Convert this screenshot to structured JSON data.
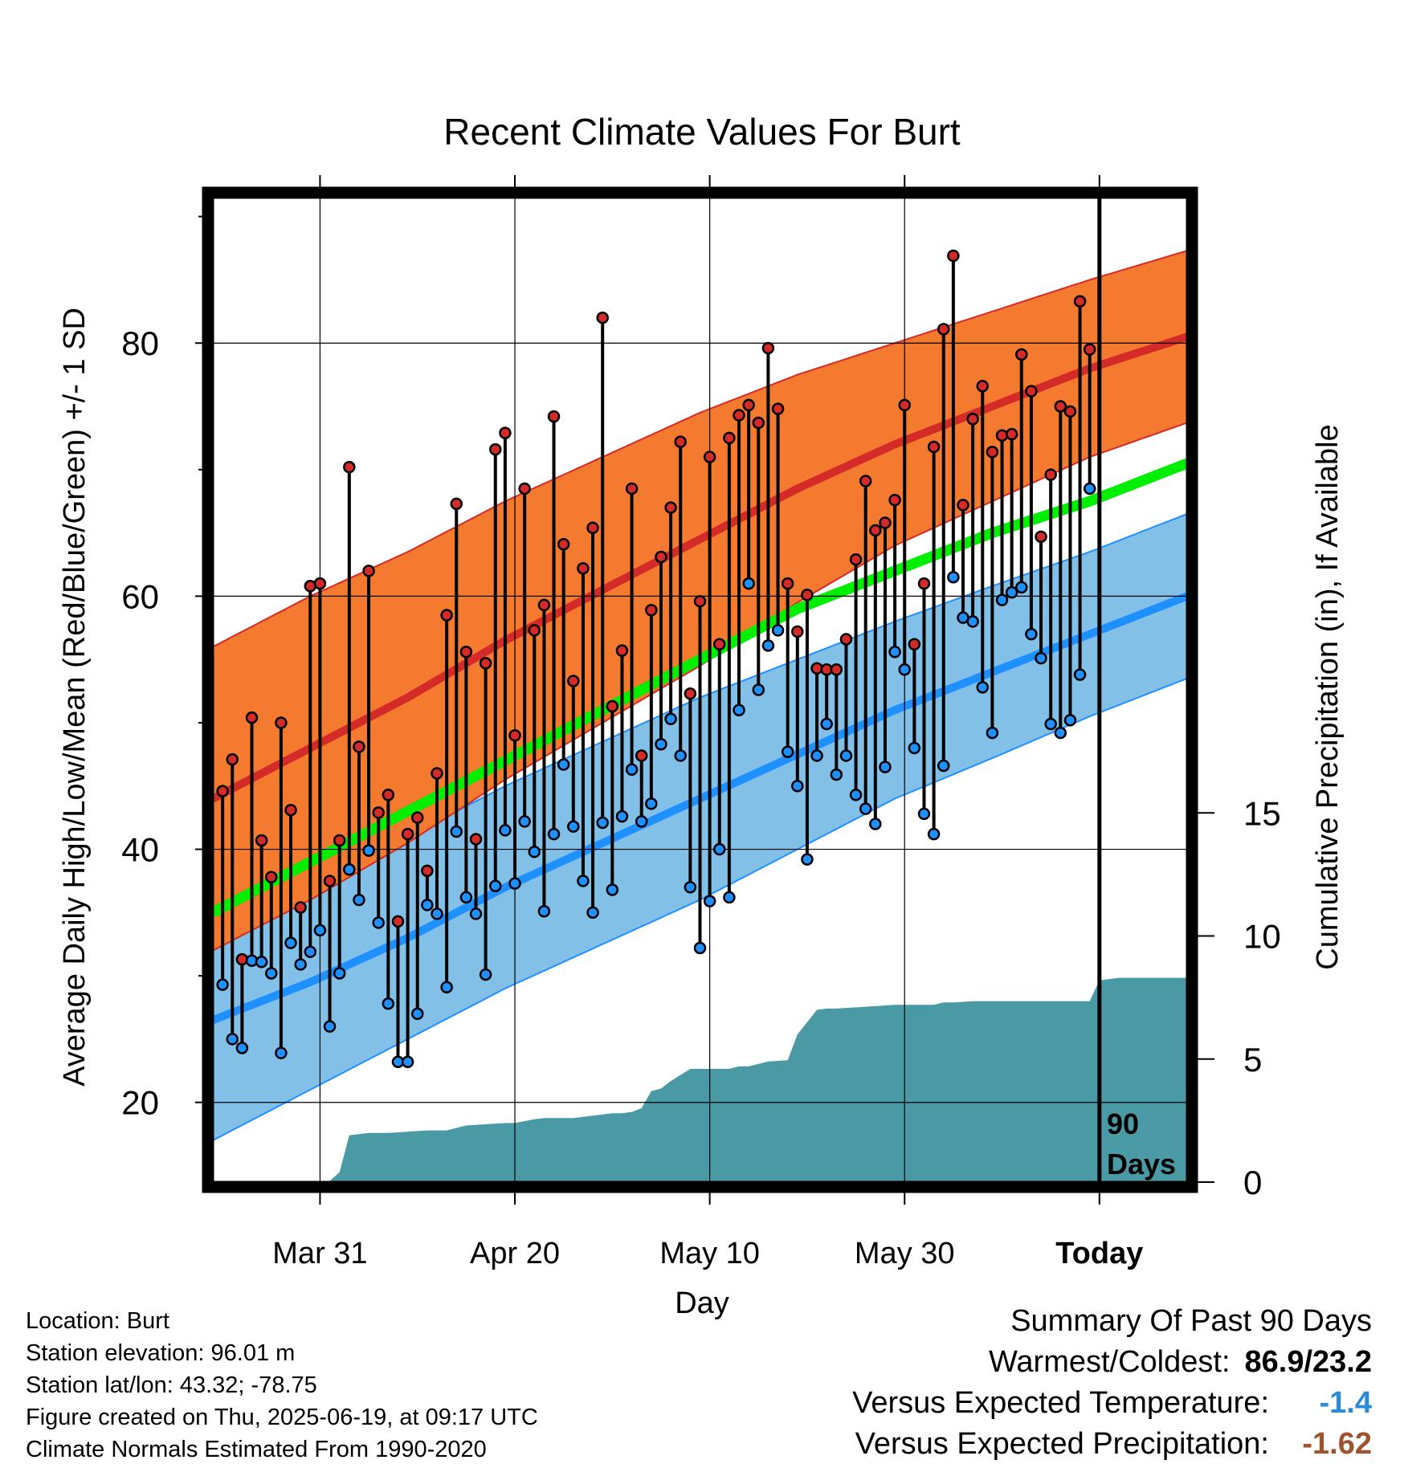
{
  "title": "Recent Climate Values For Burt",
  "ylabel_left": "Average Daily High/Low/Mean (Red/Blue/Green) +/- 1 SD",
  "ylabel_right": "Cumulative Precipitation (in), If Available",
  "xlabel": "Day",
  "today_marker": {
    "label_line1": "90",
    "label_line2": "Days"
  },
  "info": {
    "location": "Location: Burt",
    "elevation": "Station elevation: 96.01 m",
    "latlon": "Station lat/lon: 43.32; -78.75",
    "created": "Figure created on Thu, 2025-06-19, at 09:17 UTC",
    "normals": "Climate Normals Estimated From 1990-2020"
  },
  "summary": {
    "heading": "Summary Of Past 90 Days",
    "warm_cold_label": "Warmest/Coldest:",
    "warm_cold_value": "86.9/23.2",
    "temp_label": "Versus Expected Temperature:",
    "temp_value": "-1.4",
    "temp_color": "#2a8ad8",
    "precip_label": "Versus Expected Precipitation:",
    "precip_value": "-1.62",
    "precip_color": "#a0522d"
  },
  "colors": {
    "high_band": "#f47a30",
    "high_mean": "#d42a28",
    "low_band": "#82c0e8",
    "low_mean": "#1e90ff",
    "mean_line": "#00ee00",
    "precip_fill": "#4a9aa5",
    "high_dot": "#d42a28",
    "low_dot": "#1e90ff"
  },
  "chart_data": {
    "type": "line",
    "x_unit": "days relative to today (0 = Today, 2025-06-19)",
    "xlim": [
      -91,
      9
    ],
    "x_ticks": [
      {
        "x": -80,
        "label": "Mar 31"
      },
      {
        "x": -60,
        "label": "Apr 20"
      },
      {
        "x": -40,
        "label": "May 10"
      },
      {
        "x": -20,
        "label": "May 30"
      },
      {
        "x": 0,
        "label": "Today"
      }
    ],
    "y_left": {
      "lim": [
        13.7,
        91.5
      ],
      "ticks": [
        20,
        40,
        60,
        80
      ],
      "minor_ticks": [
        30,
        50,
        70,
        90
      ]
    },
    "y_right": {
      "lim": [
        0,
        40
      ],
      "ticks": [
        0,
        5,
        10,
        15
      ]
    },
    "normals": {
      "x": [
        -91,
        -81,
        -71,
        -61,
        -51,
        -41,
        -31,
        -21,
        -11,
        -1,
        9
      ],
      "high_mean": [
        44,
        48,
        52,
        56.5,
        60.5,
        64.5,
        68.5,
        72,
        75,
        78,
        80.5
      ],
      "high_sd": [
        12,
        12,
        11.5,
        11,
        10.5,
        10,
        9,
        8,
        7.5,
        7,
        6.8
      ],
      "low_mean": [
        26.5,
        29.5,
        33,
        37,
        40.5,
        44,
        47.5,
        51,
        54,
        57,
        60
      ],
      "low_sd": [
        9.5,
        8.5,
        8,
        8,
        8,
        8,
        7.5,
        7,
        6.8,
        6.5,
        6.5
      ],
      "mean": [
        35,
        39,
        43,
        47,
        51,
        55,
        59,
        62,
        65,
        67.5,
        70.5
      ]
    },
    "daily": {
      "x": [
        -90,
        -89,
        -88,
        -87,
        -86,
        -85,
        -84,
        -83,
        -82,
        -81,
        -80,
        -79,
        -78,
        -77,
        -76,
        -75,
        -74,
        -73,
        -72,
        -71,
        -70,
        -69,
        -68,
        -67,
        -66,
        -65,
        -64,
        -63,
        -62,
        -61,
        -60,
        -59,
        -58,
        -57,
        -56,
        -55,
        -54,
        -53,
        -52,
        -51,
        -50,
        -49,
        -48,
        -47,
        -46,
        -45,
        -44,
        -43,
        -42,
        -41,
        -40,
        -39,
        -38,
        -37,
        -36,
        -35,
        -34,
        -33,
        -32,
        -31,
        -30,
        -29,
        -28,
        -27,
        -26,
        -25,
        -24,
        -23,
        -22,
        -21,
        -20,
        -19,
        -18,
        -17,
        -16,
        -15,
        -14,
        -13,
        -12,
        -11,
        -10,
        -9,
        -8,
        -7,
        -6,
        -5,
        -4,
        -3,
        -2,
        -1,
        0
      ],
      "high": [
        44.6,
        47.1,
        31.3,
        50.4,
        40.7,
        37.8,
        50,
        43.1,
        35.4,
        60.8,
        61,
        37.5,
        40.7,
        70.2,
        48.1,
        62,
        42.9,
        44.3,
        34.3,
        41.2,
        42.5,
        38.3,
        46,
        58.5,
        67.3,
        55.6,
        40.8,
        54.7,
        71.6,
        72.9,
        49,
        68.5,
        57.3,
        59.3,
        74.2,
        64.1,
        53.3,
        62.2,
        65.4,
        82,
        51.3,
        55.7,
        68.5,
        47.4,
        58.9,
        63.1,
        67,
        72.2,
        52.3,
        59.6,
        71,
        56.2,
        72.5,
        74.3,
        75.1,
        73.7,
        79.6,
        74.8,
        61,
        57.2,
        60.1,
        54.3,
        54.2,
        54.2,
        56.6,
        62.9,
        69.1,
        65.2,
        65.8,
        67.6,
        75.1,
        56.2,
        61,
        71.8,
        81.1,
        86.9,
        67.2,
        74,
        76.6,
        71.4,
        72.7,
        72.8,
        79.1,
        76.2,
        64.7,
        69.6,
        75,
        74.6,
        83.3,
        79.5,
        null
      ],
      "low": [
        29.3,
        25,
        24.3,
        31.2,
        31.1,
        30.2,
        23.9,
        32.6,
        30.9,
        31.9,
        33.6,
        26,
        30.2,
        38.4,
        36,
        39.9,
        34.2,
        27.8,
        23.2,
        23.2,
        27,
        35.6,
        34.9,
        29.1,
        41.4,
        36.2,
        34.9,
        30.1,
        37.1,
        41.5,
        37.3,
        42.2,
        39.8,
        35.1,
        41.2,
        46.7,
        41.8,
        37.5,
        35,
        42.1,
        36.8,
        42.6,
        46.3,
        42.2,
        43.6,
        48.3,
        50.3,
        47.4,
        37,
        32.2,
        35.9,
        40,
        36.2,
        51,
        61,
        52.6,
        56.1,
        57.3,
        47.7,
        45,
        39.2,
        47.4,
        49.9,
        45.9,
        47.4,
        44.3,
        43.2,
        42.0,
        46.5,
        55.6,
        54.2,
        48.0,
        42.8,
        41.2,
        46.6,
        61.5,
        58.3,
        58.0,
        52.8,
        49.2,
        59.7,
        60.3,
        60.7,
        57.0,
        55.1,
        49.9,
        49.2,
        50.2,
        53.8,
        68.5,
        null
      ]
    },
    "precip_cumulative": {
      "x": [
        -91,
        -79,
        -78,
        -77,
        -75,
        -73,
        -71,
        -69,
        -67,
        -65,
        -63,
        -61,
        -60,
        -58,
        -57,
        -56,
        -54,
        -52,
        -50,
        -49,
        -48,
        -47,
        -46,
        -45,
        -44,
        -42,
        -40,
        -38,
        -37,
        -36,
        -34,
        -32,
        -31,
        -29,
        -28,
        -27,
        -25,
        -23,
        -21,
        -19,
        -17,
        -16,
        -15,
        -13,
        -11,
        -9,
        -7,
        -5,
        -3,
        -1,
        0,
        2,
        9
      ],
      "y": [
        0,
        0.05,
        0.4,
        1.9,
        2.0,
        2.0,
        2.05,
        2.1,
        2.1,
        2.3,
        2.35,
        2.4,
        2.4,
        2.55,
        2.6,
        2.6,
        2.6,
        2.7,
        2.8,
        2.8,
        2.85,
        3.0,
        3.7,
        3.8,
        4.1,
        4.6,
        4.6,
        4.6,
        4.7,
        4.7,
        4.9,
        4.95,
        6.0,
        7.0,
        7.05,
        7.05,
        7.1,
        7.15,
        7.2,
        7.2,
        7.2,
        7.3,
        7.3,
        7.35,
        7.35,
        7.35,
        7.35,
        7.35,
        7.35,
        7.35,
        8.2,
        8.3,
        8.3
      ]
    }
  }
}
